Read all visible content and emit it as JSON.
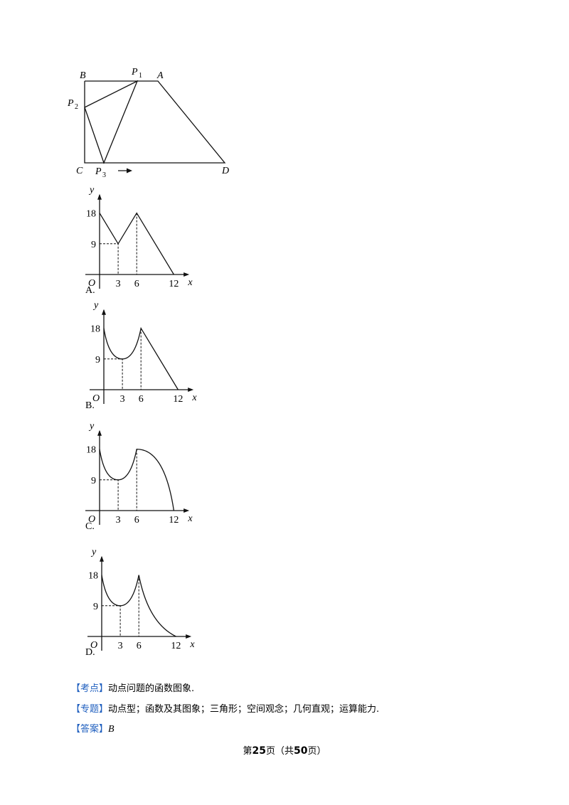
{
  "figure": {
    "points": [
      {
        "name": "B"
      },
      {
        "name": "P",
        "sub": "1"
      },
      {
        "name": "A"
      },
      {
        "name": "P",
        "sub": "2"
      },
      {
        "name": "C"
      },
      {
        "name": "P",
        "sub": "3"
      },
      {
        "name": "D"
      }
    ]
  },
  "options": [
    {
      "label": "A.",
      "y": "y",
      "x": "x",
      "origin": "O",
      "yticks": [
        "18",
        "9"
      ],
      "xticks": [
        "3",
        "6",
        "12"
      ]
    },
    {
      "label": "B.",
      "y": "y",
      "x": "x",
      "origin": "O",
      "yticks": [
        "18",
        "9"
      ],
      "xticks": [
        "3",
        "6",
        "12"
      ]
    },
    {
      "label": "C.",
      "y": "y",
      "x": "x",
      "origin": "O",
      "yticks": [
        "18",
        "9"
      ],
      "xticks": [
        "3",
        "6",
        "12"
      ]
    },
    {
      "label": "D.",
      "y": "y",
      "x": "x",
      "origin": "O",
      "yticks": [
        "18",
        "9"
      ],
      "xticks": [
        "3",
        "6",
        "12"
      ]
    }
  ],
  "analysis": [
    {
      "tag": "【考点】",
      "text": "动点问题的函数图象."
    },
    {
      "tag": "【专题】",
      "text": "动点型；函数及其图象；三角形；空间观念；几何直观；运算能力."
    },
    {
      "tag": "【答案】",
      "text": "B"
    }
  ],
  "footer": [
    "第",
    "25",
    "页（共",
    "50",
    "页）"
  ]
}
